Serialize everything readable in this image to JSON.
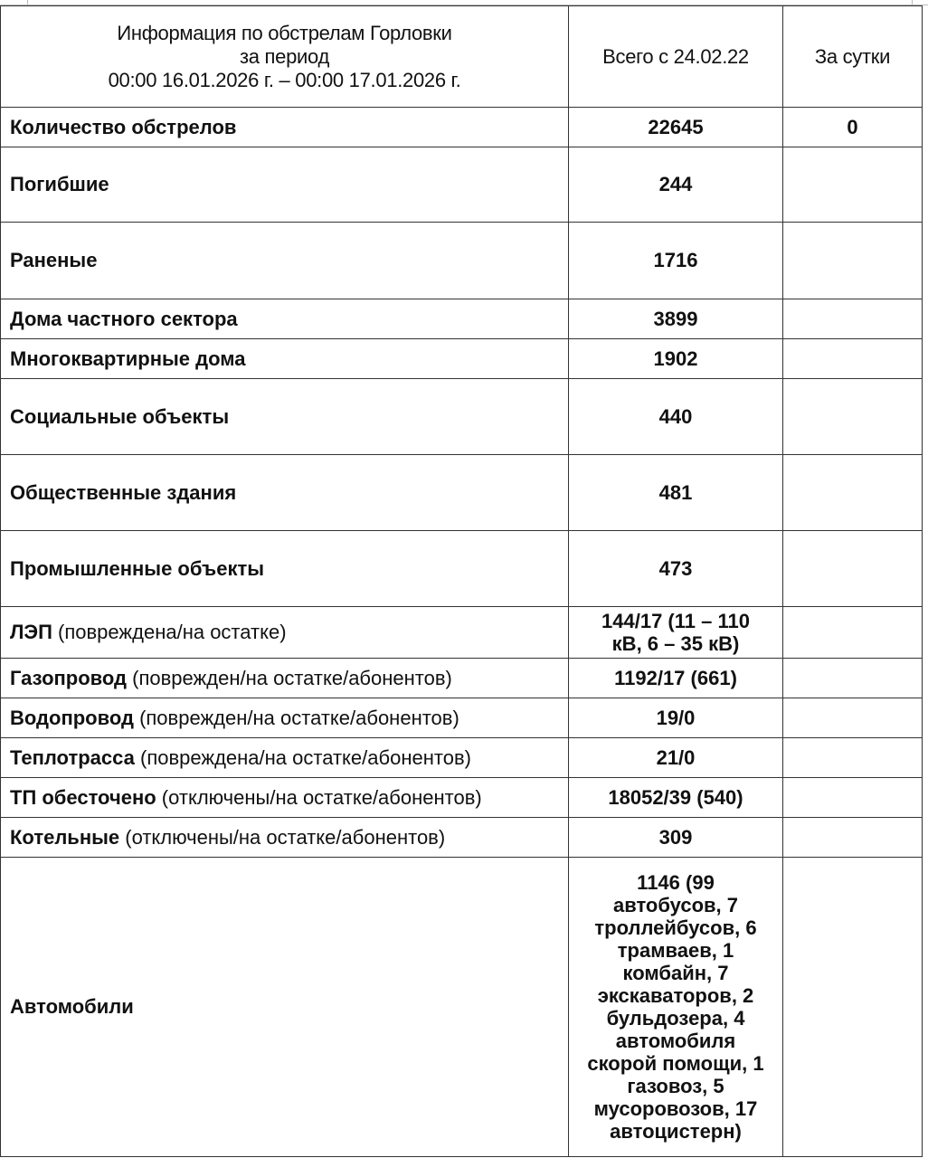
{
  "header": {
    "title_line1": "Информация по обстрелам Горловки",
    "title_line2": "за период",
    "title_line3": "00:00 16.01.2026 г. – 00:00 17.01.2026 г.",
    "col_total": "Всего с 24.02.22",
    "col_day": "За сутки"
  },
  "rows": [
    {
      "label": "Количество обстрелов",
      "note": "",
      "total": "22645",
      "day": "0"
    },
    {
      "label": "Погибшие",
      "note": "",
      "total": "244",
      "day": ""
    },
    {
      "label": "Раненые",
      "note": "",
      "total": "1716",
      "day": ""
    },
    {
      "label": "Дома частного сектора",
      "note": "",
      "total": "3899",
      "day": ""
    },
    {
      "label": "Многоквартирные дома",
      "note": "",
      "total": "1902",
      "day": ""
    },
    {
      "label": "Социальные объекты",
      "note": "",
      "total": "440",
      "day": ""
    },
    {
      "label": "Общественные здания",
      "note": "",
      "total": "481",
      "day": ""
    },
    {
      "label": "Промышленные объекты",
      "note": "",
      "total": "473",
      "day": ""
    },
    {
      "label": "ЛЭП",
      "note": " (повреждена/на остатке)",
      "total": "144/17 (11 – 110 кВ, 6 – 35 кВ)",
      "day": ""
    },
    {
      "label": "Газопровод",
      "note": " (поврежден/на остатке/абонентов)",
      "total": "1192/17 (661)",
      "day": ""
    },
    {
      "label": "Водопровод",
      "note": " (поврежден/на остатке/абонентов)",
      "total": "19/0",
      "day": ""
    },
    {
      "label": "Теплотрасса",
      "note": " (повреждена/на остатке/абонентов)",
      "total": "21/0",
      "day": ""
    },
    {
      "label": "ТП обесточено",
      "note": " (отключены/на остатке/абонентов)",
      "total": "18052/39 (540)",
      "day": ""
    },
    {
      "label": "Котельные",
      "note": " (отключены/на остатке/абонентов)",
      "total": "309",
      "day": ""
    },
    {
      "label": "Автомобили",
      "note": "",
      "total": "1146 (99 автобусов, 7 троллейбусов, 6 трамваев, 1 комбайн, 7 экскаваторов, 2 бульдозера, 4 автомобиля скорой помощи, 1 газовоз, 5 мусоровозов, 17 автоцистерн)",
      "day": ""
    }
  ]
}
